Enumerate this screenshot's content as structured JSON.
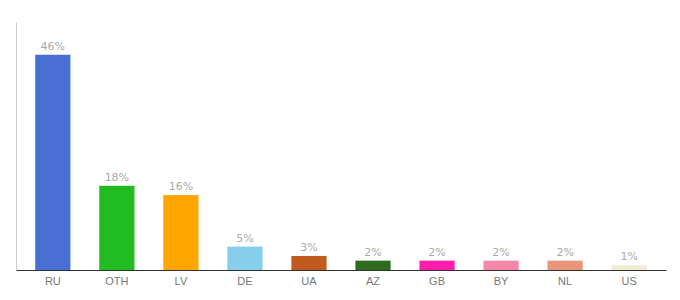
{
  "chart_data": {
    "type": "bar",
    "categories": [
      "RU",
      "OTH",
      "LV",
      "DE",
      "UA",
      "AZ",
      "GB",
      "BY",
      "NL",
      "US"
    ],
    "values": [
      46,
      18,
      16,
      5,
      3,
      2,
      2,
      2,
      2,
      1
    ],
    "value_labels": [
      "46%",
      "18%",
      "16%",
      "5%",
      "3%",
      "2%",
      "2%",
      "2%",
      "2%",
      "1%"
    ],
    "colors": [
      "#4A6FD4",
      "#22BB22",
      "#FFA500",
      "#87CEEB",
      "#C05A1F",
      "#2E6B1E",
      "#FF1EAA",
      "#F587A8",
      "#E8957A",
      "#F0EDD0"
    ],
    "ylim": [
      0,
      53
    ],
    "data_labels": true,
    "tick_labels": "x",
    "grid": false
  }
}
